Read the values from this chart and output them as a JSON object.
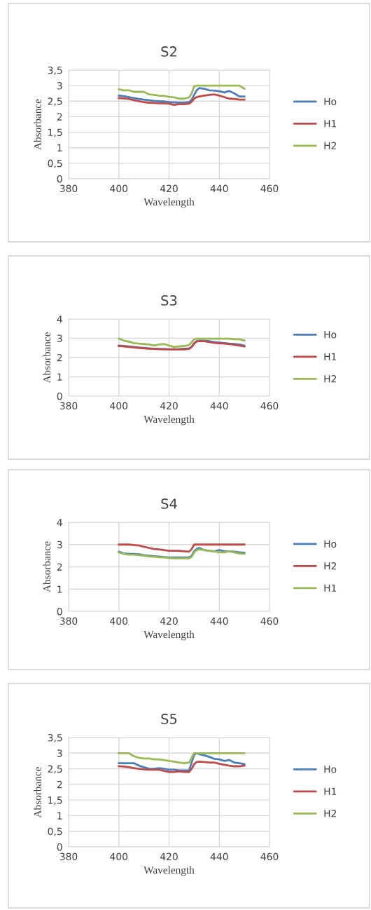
{
  "chart_data": [
    {
      "type": "line",
      "title": "S2",
      "xlabel": "Wavelength",
      "ylabel": "Absorbance",
      "grid": true,
      "legend": "right",
      "x": [
        400,
        402,
        404,
        406,
        408,
        410,
        412,
        414,
        416,
        418,
        420,
        422,
        424,
        426,
        428,
        429,
        430,
        431,
        432,
        434,
        436,
        438,
        440,
        442,
        444,
        446,
        448,
        450
      ],
      "xlim": [
        380,
        460
      ],
      "xticks": [
        380,
        400,
        420,
        440,
        460
      ],
      "ylim": [
        0,
        3.5
      ],
      "yticks": [
        0,
        {
          "value": 0.5,
          "label": "0,5"
        },
        1,
        {
          "value": 1.5,
          "label": "1,5"
        },
        2,
        {
          "value": 2.5,
          "label": "2,5"
        },
        3,
        {
          "value": 3.5,
          "label": "3,5"
        }
      ],
      "series": [
        {
          "name": "Ho",
          "color": "#4a7ebb",
          "values": [
            2.68,
            2.66,
            2.63,
            2.6,
            2.57,
            2.55,
            2.53,
            2.51,
            2.5,
            2.49,
            2.47,
            2.46,
            2.45,
            2.45,
            2.47,
            2.55,
            2.7,
            2.85,
            2.92,
            2.9,
            2.85,
            2.84,
            2.82,
            2.78,
            2.83,
            2.75,
            2.65,
            2.65
          ]
        },
        {
          "name": "H1",
          "color": "#be4b48",
          "values": [
            2.6,
            2.59,
            2.57,
            2.53,
            2.5,
            2.47,
            2.45,
            2.44,
            2.43,
            2.43,
            2.42,
            2.38,
            2.4,
            2.4,
            2.42,
            2.48,
            2.58,
            2.63,
            2.65,
            2.68,
            2.7,
            2.72,
            2.68,
            2.63,
            2.58,
            2.57,
            2.55,
            2.55
          ]
        },
        {
          "name": "H2",
          "color": "#98b954",
          "values": [
            2.88,
            2.85,
            2.85,
            2.8,
            2.8,
            2.8,
            2.72,
            2.7,
            2.68,
            2.67,
            2.64,
            2.62,
            2.58,
            2.58,
            2.62,
            2.75,
            2.98,
            3,
            3,
            3,
            3,
            3,
            3,
            3,
            3,
            3,
            3,
            2.9
          ]
        }
      ]
    },
    {
      "type": "line",
      "title": "S3",
      "xlabel": "Wavelength",
      "ylabel": "Absorbance",
      "grid": true,
      "legend": "right",
      "x": [
        400,
        402,
        404,
        406,
        408,
        410,
        412,
        414,
        416,
        418,
        420,
        422,
        424,
        426,
        428,
        429,
        430,
        431,
        432,
        434,
        436,
        438,
        440,
        442,
        444,
        446,
        448,
        450
      ],
      "xlim": [
        380,
        460
      ],
      "xticks": [
        380,
        400,
        420,
        440,
        460
      ],
      "ylim": [
        0,
        4
      ],
      "yticks": [
        0,
        1,
        2,
        3,
        4
      ],
      "series": [
        {
          "name": "Ho",
          "color": "#4a7ebb",
          "values": [
            2.62,
            2.6,
            2.58,
            2.55,
            2.52,
            2.5,
            2.48,
            2.46,
            2.45,
            2.44,
            2.43,
            2.43,
            2.44,
            2.46,
            2.48,
            2.55,
            2.75,
            2.85,
            2.88,
            2.88,
            2.85,
            2.8,
            2.78,
            2.75,
            2.72,
            2.7,
            2.68,
            2.62
          ]
        },
        {
          "name": "H1",
          "color": "#be4b48",
          "values": [
            2.6,
            2.58,
            2.55,
            2.52,
            2.5,
            2.48,
            2.46,
            2.45,
            2.43,
            2.43,
            2.42,
            2.42,
            2.42,
            2.42,
            2.45,
            2.55,
            2.72,
            2.83,
            2.85,
            2.85,
            2.8,
            2.76,
            2.74,
            2.72,
            2.7,
            2.66,
            2.62,
            2.58
          ]
        },
        {
          "name": "H2",
          "color": "#98b954",
          "values": [
            2.98,
            2.88,
            2.82,
            2.75,
            2.72,
            2.7,
            2.68,
            2.62,
            2.68,
            2.7,
            2.62,
            2.55,
            2.58,
            2.6,
            2.65,
            2.8,
            2.95,
            2.98,
            2.98,
            2.98,
            2.98,
            2.98,
            2.98,
            2.98,
            2.98,
            2.95,
            2.95,
            2.88
          ]
        }
      ]
    },
    {
      "type": "line",
      "title": "S4",
      "xlabel": "Wavelength",
      "ylabel": "Absorbance",
      "grid": true,
      "legend": "right",
      "x": [
        400,
        402,
        404,
        406,
        408,
        410,
        412,
        414,
        416,
        418,
        420,
        422,
        424,
        426,
        428,
        429,
        430,
        431,
        432,
        434,
        436,
        438,
        440,
        442,
        444,
        446,
        448,
        450
      ],
      "xlim": [
        380,
        460
      ],
      "xticks": [
        380,
        400,
        420,
        440,
        460
      ],
      "ylim": [
        0,
        4
      ],
      "yticks": [
        0,
        1,
        2,
        3,
        4
      ],
      "series": [
        {
          "name": "Ho",
          "color": "#4a7ebb",
          "values": [
            2.68,
            2.6,
            2.58,
            2.58,
            2.56,
            2.52,
            2.5,
            2.48,
            2.46,
            2.44,
            2.42,
            2.42,
            2.42,
            2.42,
            2.42,
            2.5,
            2.7,
            2.8,
            2.85,
            2.75,
            2.72,
            2.7,
            2.75,
            2.7,
            2.7,
            2.68,
            2.65,
            2.63
          ]
        },
        {
          "name": "H2",
          "color": "#be4b48",
          "values": [
            3,
            3,
            3,
            2.98,
            2.96,
            2.9,
            2.85,
            2.8,
            2.78,
            2.75,
            2.72,
            2.72,
            2.72,
            2.7,
            2.68,
            2.8,
            3,
            3,
            3,
            3,
            3,
            3,
            3,
            3,
            3,
            3,
            3,
            3
          ]
        },
        {
          "name": "H1",
          "color": "#98b954",
          "values": [
            2.65,
            2.58,
            2.55,
            2.55,
            2.52,
            2.5,
            2.47,
            2.45,
            2.43,
            2.42,
            2.4,
            2.38,
            2.38,
            2.38,
            2.38,
            2.45,
            2.65,
            2.75,
            2.78,
            2.75,
            2.72,
            2.7,
            2.65,
            2.65,
            2.7,
            2.65,
            2.6,
            2.58
          ]
        }
      ]
    },
    {
      "type": "line",
      "title": "S5",
      "xlabel": "Wavelength",
      "ylabel": "Absorbance",
      "grid": true,
      "legend": "right",
      "x": [
        400,
        402,
        404,
        406,
        408,
        410,
        412,
        414,
        416,
        418,
        420,
        422,
        424,
        426,
        428,
        429,
        430,
        431,
        432,
        434,
        436,
        438,
        440,
        442,
        444,
        446,
        448,
        450
      ],
      "xlim": [
        380,
        460
      ],
      "xticks": [
        380,
        400,
        420,
        440,
        460
      ],
      "ylim": [
        0,
        3.5
      ],
      "yticks": [
        0,
        {
          "value": 0.5,
          "label": "0,5"
        },
        1,
        {
          "value": 1.5,
          "label": "1,5"
        },
        2,
        {
          "value": 2.5,
          "label": "2,5"
        },
        3,
        {
          "value": 3.5,
          "label": "3,5"
        }
      ],
      "series": [
        {
          "name": "Ho",
          "color": "#4a7ebb",
          "values": [
            2.68,
            2.68,
            2.68,
            2.68,
            2.6,
            2.55,
            2.5,
            2.5,
            2.52,
            2.5,
            2.47,
            2.47,
            2.45,
            2.45,
            2.45,
            2.7,
            2.95,
            3,
            2.97,
            2.93,
            2.88,
            2.82,
            2.8,
            2.75,
            2.78,
            2.7,
            2.68,
            2.65
          ]
        },
        {
          "name": "H1",
          "color": "#be4b48",
          "values": [
            2.58,
            2.57,
            2.55,
            2.52,
            2.5,
            2.48,
            2.47,
            2.47,
            2.47,
            2.43,
            2.4,
            2.4,
            2.42,
            2.4,
            2.4,
            2.5,
            2.65,
            2.72,
            2.73,
            2.72,
            2.7,
            2.7,
            2.66,
            2.63,
            2.6,
            2.58,
            2.58,
            2.6
          ]
        },
        {
          "name": "H2",
          "color": "#98b954",
          "values": [
            3,
            3,
            3,
            2.9,
            2.85,
            2.83,
            2.83,
            2.8,
            2.8,
            2.78,
            2.75,
            2.73,
            2.7,
            2.68,
            2.7,
            2.85,
            3,
            3,
            3,
            3,
            3,
            3,
            3,
            3,
            3,
            3,
            3,
            3
          ]
        }
      ]
    }
  ]
}
